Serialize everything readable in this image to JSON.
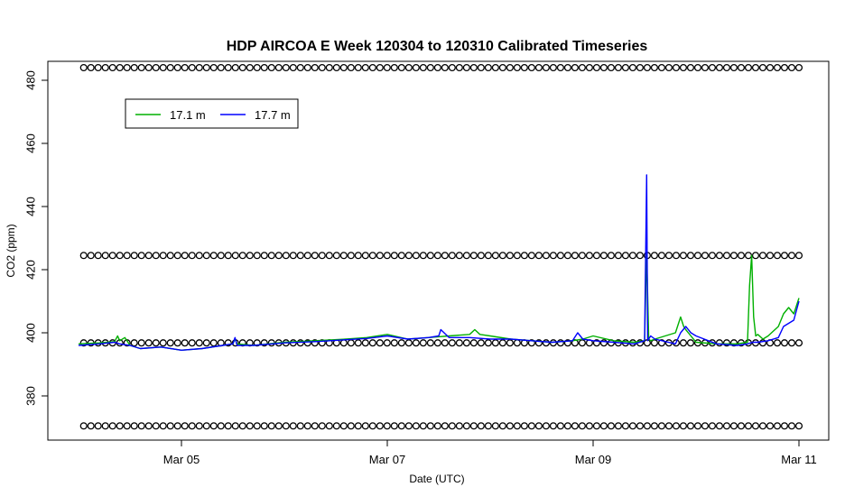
{
  "chart_data": {
    "type": "line",
    "title": "HDP AIRCOA E  Week 120304 to 120310  Calibrated Timeseries",
    "xlabel": "Date (UTC)",
    "ylabel": "CO2 (ppm)",
    "xlim": [
      0,
      7.05
    ],
    "ylim": [
      366,
      486
    ],
    "x_ticks": [
      {
        "x": 1,
        "label": "Mar 05"
      },
      {
        "x": 3,
        "label": "Mar 07"
      },
      {
        "x": 5,
        "label": "Mar 09"
      },
      {
        "x": 7,
        "label": "Mar 11"
      }
    ],
    "y_ticks": [
      380,
      400,
      420,
      440,
      460,
      480
    ],
    "legend": {
      "position": "top-left",
      "entries": [
        {
          "label": "17.1 m",
          "color": "#00b000"
        },
        {
          "label": "17.7 m",
          "color": "#0000ff"
        }
      ]
    },
    "series": [
      {
        "name": "17.1 m",
        "color": "#00b000",
        "x": [
          0.0,
          0.2,
          0.35,
          0.38,
          0.4,
          0.45,
          0.47,
          0.5,
          0.6,
          0.8,
          1.0,
          1.2,
          1.4,
          1.5,
          1.52,
          1.54,
          1.7,
          2.0,
          2.3,
          2.6,
          2.8,
          3.0,
          3.2,
          3.4,
          3.6,
          3.8,
          3.85,
          3.9,
          4.0,
          4.2,
          4.4,
          4.6,
          4.8,
          4.9,
          5.0,
          5.2,
          5.4,
          5.5,
          5.52,
          5.54,
          5.56,
          5.6,
          5.8,
          5.85,
          5.88,
          5.9,
          6.0,
          6.2,
          6.4,
          6.5,
          6.52,
          6.54,
          6.56,
          6.58,
          6.6,
          6.65,
          6.7,
          6.8,
          6.85,
          6.9,
          6.95,
          7.0
        ],
        "y": [
          396.5,
          396.8,
          397.2,
          399,
          397.5,
          398.5,
          397.5,
          396,
          395,
          395.5,
          394.5,
          395,
          396,
          396.5,
          398,
          396.5,
          396,
          397,
          397.5,
          398,
          398.5,
          399.5,
          398,
          398.5,
          399,
          399.5,
          401,
          399.5,
          399,
          398,
          397.5,
          397,
          397.5,
          398,
          399,
          397.5,
          397,
          397.5,
          425,
          398,
          397.5,
          398,
          400,
          405,
          402,
          401,
          397,
          396.5,
          396.5,
          397,
          415,
          424.5,
          405,
          399,
          399.5,
          398,
          399,
          402,
          406,
          408,
          406,
          411
        ]
      },
      {
        "name": "17.7 m",
        "color": "#0000ff",
        "x": [
          0.0,
          0.2,
          0.35,
          0.4,
          0.5,
          0.6,
          0.8,
          1.0,
          1.2,
          1.4,
          1.5,
          1.52,
          1.54,
          1.7,
          2.0,
          2.3,
          2.6,
          2.8,
          3.0,
          3.2,
          3.4,
          3.5,
          3.52,
          3.6,
          3.8,
          4.0,
          4.2,
          4.4,
          4.6,
          4.8,
          4.85,
          4.9,
          5.0,
          5.2,
          5.4,
          5.5,
          5.52,
          5.53,
          5.56,
          5.6,
          5.8,
          5.85,
          5.9,
          5.95,
          6.0,
          6.2,
          6.4,
          6.5,
          6.55,
          6.6,
          6.7,
          6.8,
          6.85,
          6.9,
          6.95,
          7.0
        ],
        "y": [
          396,
          396.5,
          397,
          396.5,
          396,
          395,
          395.5,
          394.5,
          395,
          396,
          396.5,
          398.5,
          396,
          396,
          396.8,
          397.2,
          397.8,
          398.2,
          399,
          398,
          398.5,
          399,
          401,
          398.5,
          398.5,
          398,
          398,
          397.5,
          397,
          397.5,
          400,
          398,
          397.5,
          397,
          396.5,
          397.5,
          450,
          397.5,
          399,
          398,
          396.5,
          400,
          402,
          400,
          399,
          396.5,
          396,
          396.5,
          397,
          397,
          397.5,
          398.5,
          402,
          403,
          404,
          410
        ]
      },
      {
        "name": "",
        "type": "scatter",
        "marker": "circle",
        "color": "#000000",
        "note_levels": [
          370.5,
          396.8,
          424.5,
          484
        ],
        "x_start": 0.05,
        "x_end": 7.0
      }
    ]
  }
}
